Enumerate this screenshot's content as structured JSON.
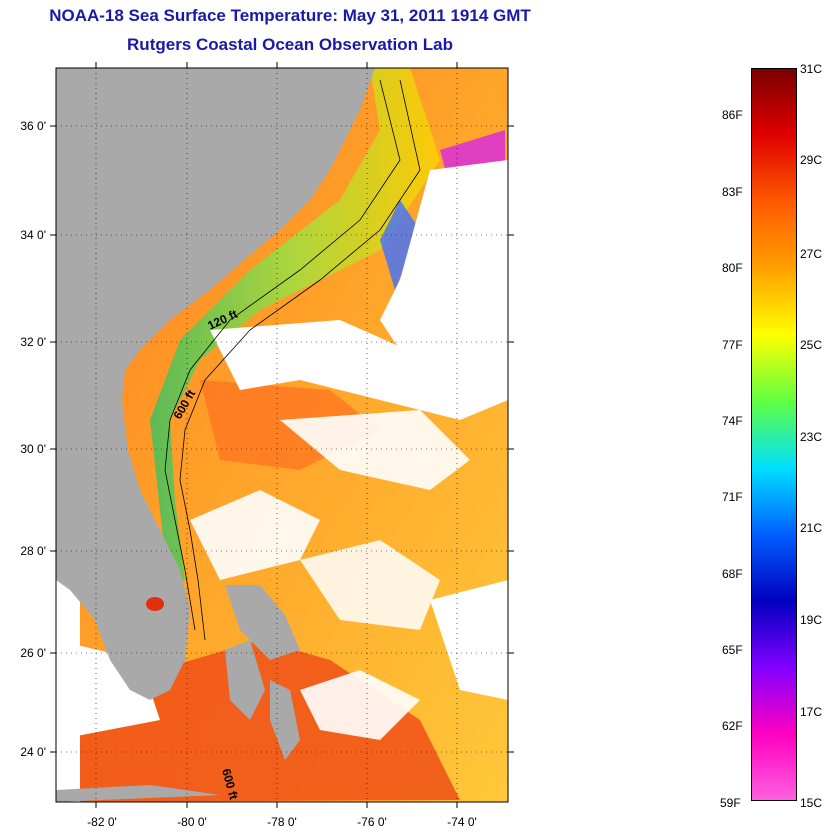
{
  "title_line1": "NOAA-18 Sea Surface Temperature:  May 31, 2011 1914 GMT",
  "title_line2": "Rutgers Coastal Ocean Observation Lab",
  "map": {
    "lat_labels": [
      "36 0'",
      "34 0'",
      "32 0'",
      "30 0'",
      "28 0'",
      "26 0'",
      "24 0'"
    ],
    "lon_labels": [
      "-82 0'",
      "-80 0'",
      "-78 0'",
      "-76 0'",
      "-74 0'"
    ],
    "contour_labels": [
      "120 ft",
      "600 ft",
      "600 ft"
    ]
  },
  "colorbar": {
    "celsius_labels": [
      "31C",
      "29C",
      "27C",
      "25C",
      "23C",
      "21C",
      "19C",
      "17C",
      "15C"
    ],
    "fahrenheit_labels": [
      "86F",
      "83F",
      "80F",
      "77F",
      "74F",
      "71F",
      "68F",
      "65F",
      "62F",
      "59F"
    ],
    "colors": [
      "#7a0000",
      "#e00000",
      "#ff5a00",
      "#ffa000",
      "#ffff00",
      "#60ff40",
      "#00e0ff",
      "#0060ff",
      "#0000c0",
      "#8000ff",
      "#ff00c0",
      "#ff60e0"
    ]
  },
  "colors": {
    "title": "#1a1aa8",
    "land": "#a9a9a9",
    "cloud": "#ffffff",
    "warm_water": "#ff9a2a"
  }
}
